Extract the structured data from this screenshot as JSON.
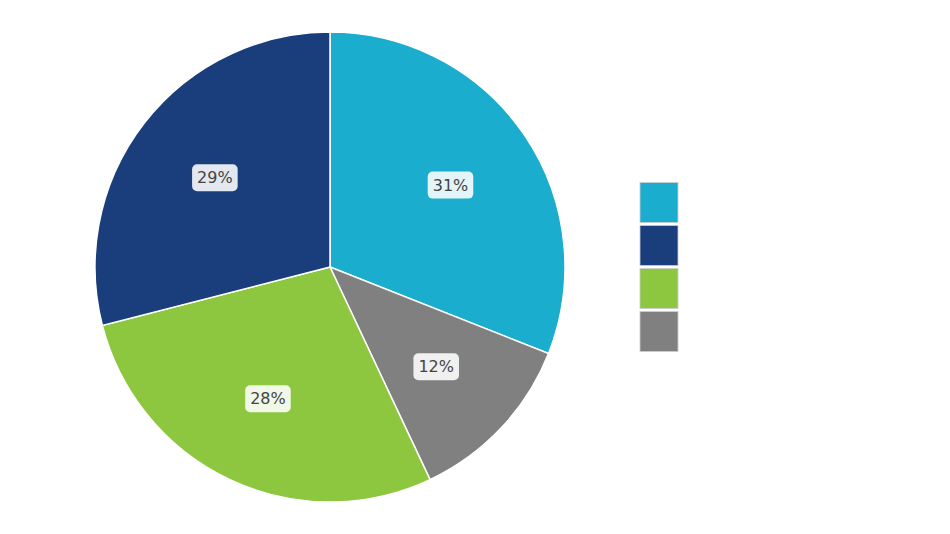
{
  "chart_data": {
    "type": "pie",
    "values": [
      31,
      12,
      28,
      29
    ],
    "value_labels": [
      "31%",
      "12%",
      "28%",
      "29%"
    ],
    "colors": [
      "#1aadcd",
      "#808080",
      "#8dc63f",
      "#1a3d7c"
    ],
    "data_labels": true,
    "legend": "right",
    "legend_colors": [
      "#1aadcd",
      "#1a3d7c",
      "#8dc63f",
      "#808080"
    ]
  }
}
